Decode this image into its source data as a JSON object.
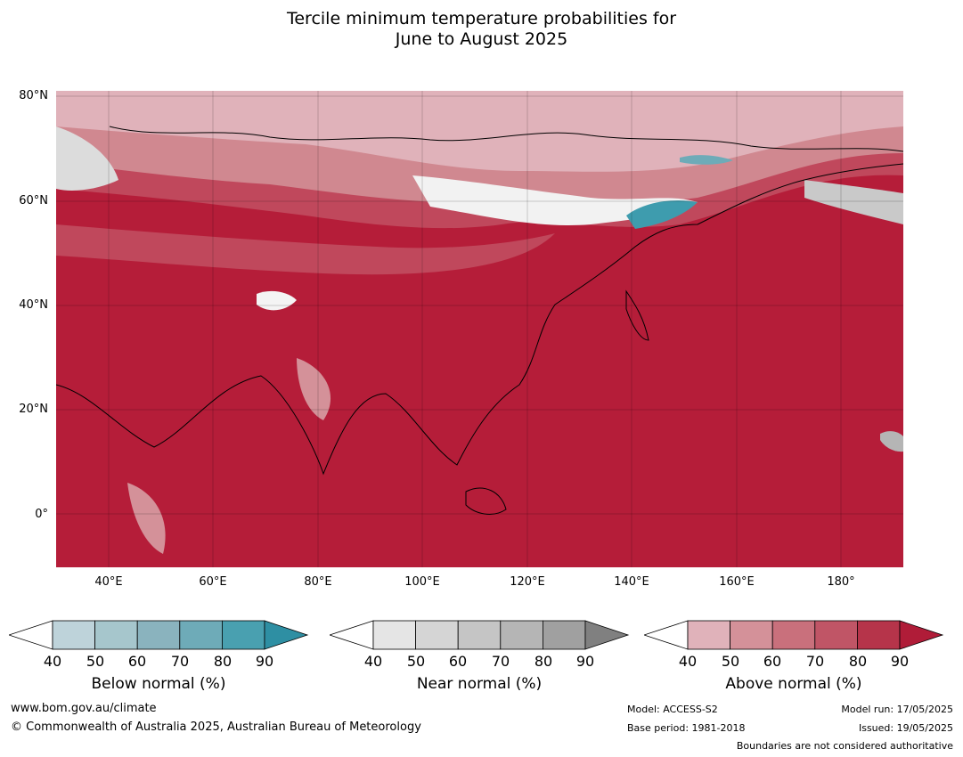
{
  "title_line1": "Tercile minimum temperature probabilities for",
  "title_line2": "June to August 2025",
  "map": {
    "lat_labels": [
      "80°N",
      "60°N",
      "40°N",
      "20°N",
      "0°"
    ],
    "lon_labels": [
      "40°E",
      "60°E",
      "80°E",
      "100°E",
      "120°E",
      "140°E",
      "160°E",
      "180°"
    ],
    "extent": {
      "lon": [
        30,
        192
      ],
      "lat": [
        -10,
        81
      ]
    }
  },
  "legend": [
    {
      "title": "Below normal (%)",
      "ticks": [
        "40",
        "50",
        "60",
        "70",
        "80",
        "90"
      ],
      "colors": [
        "#ffffff",
        "#bed3da",
        "#a6c6cc",
        "#8ab3be",
        "#6eabb8",
        "#49a0b0",
        "#2e8fa3"
      ]
    },
    {
      "title": "Near normal (%)",
      "ticks": [
        "40",
        "50",
        "60",
        "70",
        "80",
        "90"
      ],
      "colors": [
        "#ffffff",
        "#e5e5e5",
        "#d5d5d5",
        "#c5c5c5",
        "#b5b5b5",
        "#a0a0a0",
        "#808080"
      ]
    },
    {
      "title": "Above normal (%)",
      "ticks": [
        "40",
        "50",
        "60",
        "70",
        "80",
        "90"
      ],
      "colors": [
        "#ffffff",
        "#e0b2ba",
        "#d49199",
        "#c9707c",
        "#c05566",
        "#b6344a",
        "#b01c38"
      ]
    }
  ],
  "footer": {
    "website": "www.bom.gov.au/climate",
    "copyright": "© Commonwealth of Australia 2025, Australian Bureau of Meteorology",
    "model": "Model: ACCESS-S2",
    "base_period": "Base period: 1981-2018",
    "model_run": "Model run: 17/05/2025",
    "issued": "Issued: 19/05/2025",
    "disclaimer": "Boundaries are not considered authoritative"
  }
}
